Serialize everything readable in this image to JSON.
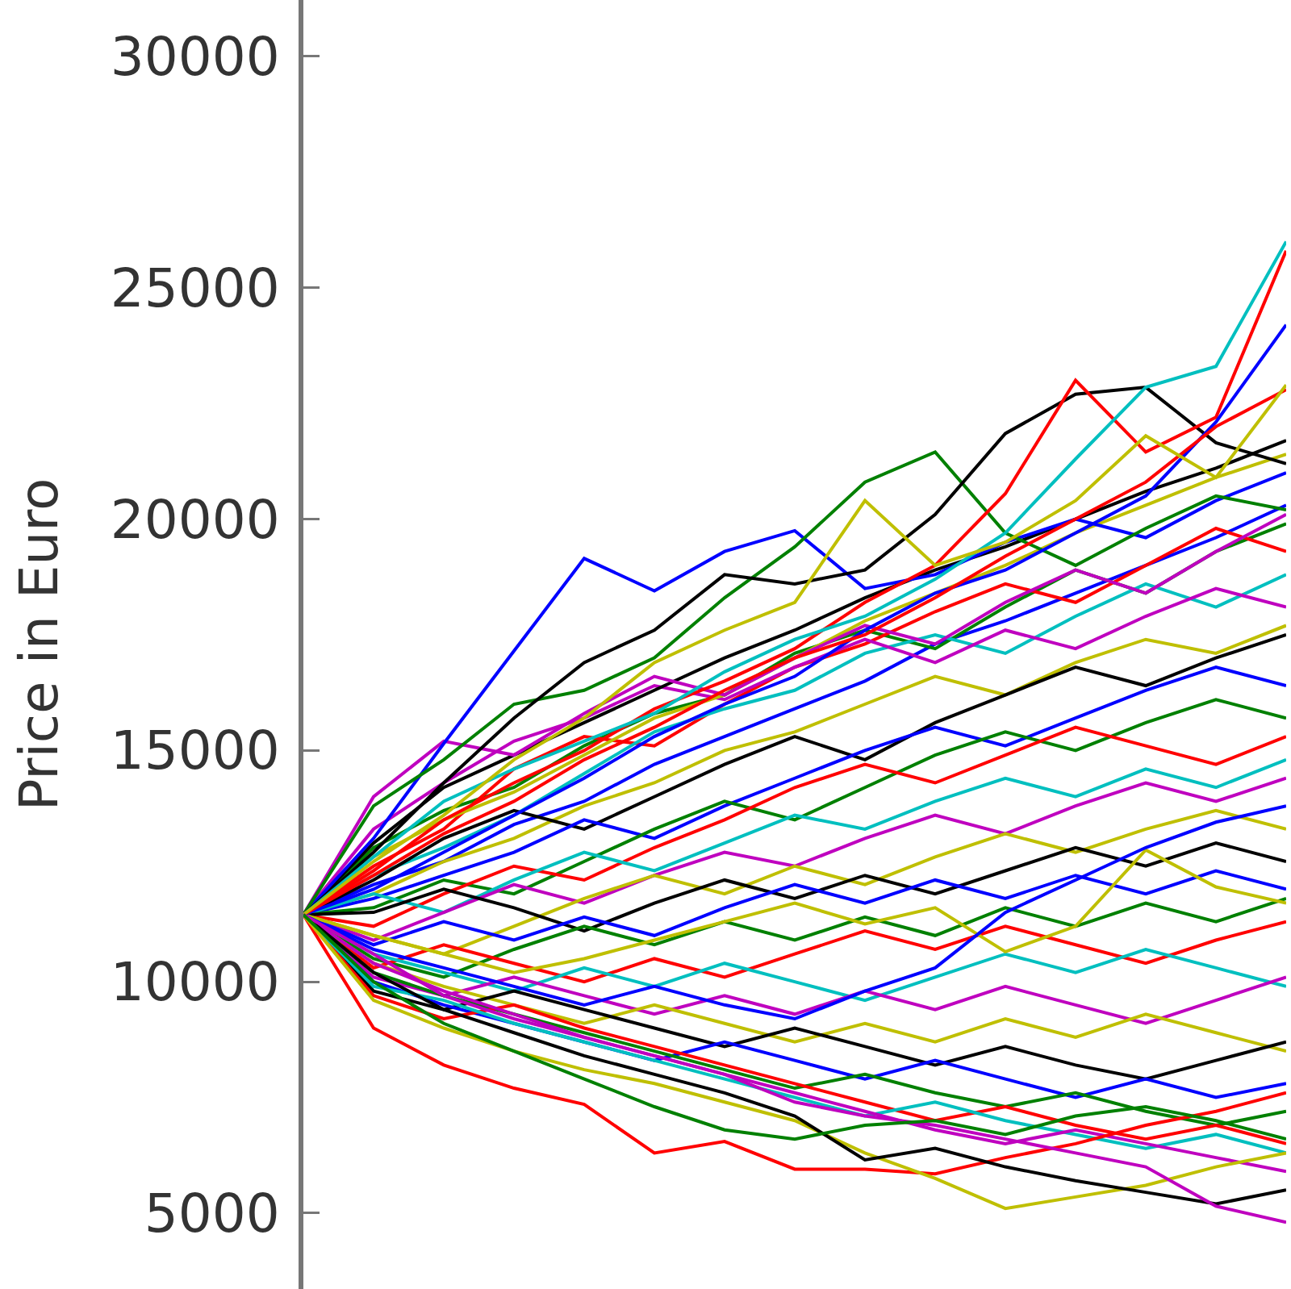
{
  "chart_data": {
    "type": "line",
    "ylabel": "Price in Euro",
    "categories": [
      null,
      null,
      null,
      null,
      null,
      null,
      null,
      null,
      null,
      null,
      null,
      null,
      null,
      null,
      null
    ],
    "ylim": [
      3360,
      31220
    ],
    "yticks": [
      5000,
      10000,
      15000,
      20000,
      25000,
      30000
    ],
    "tick_labels": "y",
    "grid": false,
    "series": [
      {
        "color": "#0000ff",
        "values": [
          11450,
          12100,
          12600,
          13400,
          13900,
          14700,
          15300,
          15900,
          16500,
          17300,
          17800,
          18400,
          19000,
          19600,
          20300
        ]
      },
      {
        "color": "#008000",
        "values": [
          11450,
          12900,
          13700,
          14200,
          15100,
          15800,
          16200,
          17100,
          17600,
          17200,
          18100,
          18900,
          18400,
          19300,
          19900
        ]
      },
      {
        "color": "#ff0000",
        "values": [
          11450,
          12500,
          13300,
          14600,
          15300,
          15100,
          16000,
          16800,
          17300,
          18000,
          18600,
          18200,
          19000,
          19800,
          19300
        ]
      },
      {
        "color": "#00bfbf",
        "values": [
          11450,
          12300,
          12900,
          13600,
          14500,
          15400,
          15900,
          16300,
          17100,
          17500,
          17100,
          17900,
          18600,
          18100,
          18800
        ]
      },
      {
        "color": "#bf00bf",
        "values": [
          11450,
          13300,
          14300,
          15200,
          15700,
          16400,
          16100,
          16800,
          17400,
          16900,
          17600,
          17200,
          17900,
          18500,
          18100
        ]
      },
      {
        "color": "#bfbf00",
        "values": [
          11450,
          11900,
          12600,
          13100,
          13800,
          14300,
          15000,
          15400,
          16000,
          16600,
          16200,
          16900,
          17400,
          17100,
          17700
        ]
      },
      {
        "color": "#000000",
        "values": [
          11450,
          12200,
          13100,
          13700,
          13300,
          14000,
          14700,
          15300,
          14800,
          15600,
          16200,
          16800,
          16400,
          17000,
          17500
        ]
      },
      {
        "color": "#0000ff",
        "values": [
          11450,
          11800,
          12300,
          12800,
          13500,
          13100,
          13800,
          14400,
          15000,
          15500,
          15100,
          15700,
          16300,
          16800,
          16400
        ]
      },
      {
        "color": "#008000",
        "values": [
          11450,
          11600,
          12200,
          11900,
          12600,
          13300,
          13900,
          13500,
          14200,
          14900,
          15400,
          15000,
          15600,
          16100,
          15700
        ]
      },
      {
        "color": "#ff0000",
        "values": [
          11450,
          11200,
          11900,
          12500,
          12200,
          12900,
          13500,
          14200,
          14700,
          14300,
          14900,
          15500,
          15100,
          14700,
          15300
        ]
      },
      {
        "color": "#00bfbf",
        "values": [
          11450,
          11900,
          11500,
          12200,
          12800,
          12400,
          13000,
          13600,
          13300,
          13900,
          14400,
          14000,
          14600,
          14200,
          14800
        ]
      },
      {
        "color": "#bf00bf",
        "values": [
          11450,
          10900,
          11500,
          12100,
          11700,
          12300,
          12800,
          12500,
          13100,
          13600,
          13200,
          13800,
          14300,
          13900,
          14400
        ]
      },
      {
        "color": "#bfbf00",
        "values": [
          11450,
          11000,
          10600,
          11200,
          11800,
          12300,
          11900,
          12500,
          12100,
          12700,
          13200,
          12800,
          13300,
          13700,
          13300
        ]
      },
      {
        "color": "#000000",
        "values": [
          11450,
          11500,
          12000,
          11600,
          11100,
          11700,
          12200,
          11800,
          12300,
          11900,
          12400,
          12900,
          12500,
          13000,
          12600
        ]
      },
      {
        "color": "#0000ff",
        "values": [
          11450,
          10800,
          11300,
          10900,
          11400,
          11000,
          11600,
          12100,
          11700,
          12200,
          11800,
          12300,
          11900,
          12400,
          12000
        ]
      },
      {
        "color": "#008000",
        "values": [
          11450,
          10500,
          10100,
          10700,
          11200,
          10800,
          11300,
          10900,
          11400,
          11000,
          11600,
          11200,
          11700,
          11300,
          11800
        ]
      },
      {
        "color": "#ff0000",
        "values": [
          11450,
          10300,
          10800,
          10400,
          10000,
          10500,
          10100,
          10600,
          11100,
          10700,
          11200,
          10800,
          10400,
          10900,
          11300
        ]
      },
      {
        "color": "#00bfbf",
        "values": [
          11450,
          10600,
          10200,
          9800,
          10300,
          9900,
          10400,
          10000,
          9600,
          10100,
          10600,
          10200,
          10700,
          10300,
          9900
        ]
      },
      {
        "color": "#bf00bf",
        "values": [
          11450,
          10100,
          9700,
          10100,
          9700,
          9300,
          9700,
          9300,
          9800,
          9400,
          9900,
          9500,
          9100,
          9600,
          10100
        ]
      },
      {
        "color": "#bfbf00",
        "values": [
          11450,
          10400,
          9900,
          9500,
          9100,
          9500,
          9100,
          8700,
          9100,
          8700,
          9200,
          8800,
          9300,
          8900,
          8500
        ]
      },
      {
        "color": "#000000",
        "values": [
          11450,
          9800,
          9400,
          9800,
          9400,
          9000,
          8600,
          9000,
          8600,
          8200,
          8600,
          8200,
          7900,
          8300,
          8700
        ]
      },
      {
        "color": "#0000ff",
        "values": [
          11450,
          10000,
          9500,
          9100,
          8700,
          8300,
          8700,
          8300,
          7900,
          8300,
          7900,
          7500,
          7900,
          7500,
          7800
        ]
      },
      {
        "color": "#008000",
        "values": [
          11450,
          10200,
          9700,
          9300,
          8900,
          8500,
          8100,
          7700,
          8000,
          7600,
          7300,
          7600,
          7200,
          6900,
          7200
        ]
      },
      {
        "color": "#ff0000",
        "values": [
          11450,
          9700,
          9200,
          9500,
          9000,
          8600,
          8200,
          7800,
          7400,
          7000,
          7300,
          6900,
          6600,
          6900,
          6500
        ]
      },
      {
        "color": "#00bfbf",
        "values": [
          11450,
          9900,
          9600,
          9100,
          8700,
          8300,
          7900,
          7500,
          7100,
          7400,
          7000,
          6700,
          6400,
          6700,
          6300
        ]
      },
      {
        "color": "#bf00bf",
        "values": [
          11450,
          10400,
          9800,
          9300,
          8800,
          8400,
          8000,
          7600,
          7200,
          6800,
          6500,
          6800,
          6500,
          6200,
          5900
        ]
      },
      {
        "color": "#bfbf00",
        "values": [
          11450,
          12700,
          13500,
          14100,
          14900,
          15700,
          16200,
          17000,
          17800,
          18400,
          19000,
          19700,
          20300,
          20900,
          21400
        ]
      },
      {
        "color": "#000000",
        "values": [
          11450,
          13000,
          14200,
          14900,
          15600,
          16300,
          17000,
          17600,
          18300,
          18900,
          19400,
          20000,
          20600,
          21100,
          21700
        ]
      },
      {
        "color": "#bfbf00",
        "values": [
          11450,
          11000,
          10600,
          10200,
          10500,
          10900,
          11300,
          11700,
          11250,
          11600,
          10650,
          11200,
          12850,
          12050,
          11700
        ]
      },
      {
        "color": "#0000ff",
        "values": [
          11450,
          10700,
          10300,
          9900,
          9500,
          9900,
          9500,
          9200,
          9800,
          10300,
          11500,
          12200,
          12900,
          13450,
          13800
        ]
      },
      {
        "color": "#bf00bf",
        "values": [
          11450,
          14000,
          15200,
          14900,
          15800,
          16600,
          16200,
          17000,
          17700,
          17300,
          18200,
          18900,
          18400,
          19300,
          20100
        ]
      },
      {
        "color": "#0000ff",
        "values": [
          11450,
          13100,
          15150,
          17150,
          19150,
          18450,
          19300,
          19750,
          18500,
          18800,
          19500,
          20000,
          19600,
          20400,
          21000
        ]
      },
      {
        "color": "#008000",
        "values": [
          11450,
          13800,
          14800,
          16000,
          16300,
          17000,
          18300,
          19400,
          20800,
          21450,
          19700,
          19000,
          19800,
          20500,
          20200
        ]
      },
      {
        "color": "#000000",
        "values": [
          11450,
          12800,
          14300,
          15700,
          16900,
          17600,
          18800,
          18600,
          18900,
          20100,
          21850,
          22700,
          22850,
          21650,
          21200
        ]
      },
      {
        "color": "#ff0000",
        "values": [
          11450,
          12400,
          13500,
          14300,
          15000,
          15900,
          16500,
          17200,
          18200,
          19000,
          20550,
          23000,
          21450,
          22200,
          25800
        ]
      },
      {
        "color": "#00bfbf",
        "values": [
          11450,
          12700,
          13900,
          14600,
          15200,
          15800,
          16700,
          17400,
          17900,
          18700,
          19700,
          21300,
          22850,
          23300,
          26000
        ]
      },
      {
        "color": "#0000ff",
        "values": [
          11450,
          12000,
          12800,
          13600,
          14400,
          15300,
          16000,
          16600,
          17600,
          18400,
          18900,
          19700,
          20500,
          22100,
          24200
        ]
      },
      {
        "color": "#ff0000",
        "values": [
          11450,
          12300,
          13200,
          13900,
          14800,
          15500,
          16300,
          17000,
          17500,
          18300,
          19200,
          20000,
          20800,
          22000,
          22800
        ]
      },
      {
        "color": "#bfbf00",
        "values": [
          11450,
          12600,
          13600,
          14800,
          15700,
          16900,
          17600,
          18200,
          20400,
          19000,
          19500,
          20400,
          21800,
          20900,
          22900
        ]
      },
      {
        "color": "#ff0000",
        "values": [
          11450,
          9000,
          8200,
          7700,
          7350,
          6300,
          6550,
          5950,
          5950,
          5850,
          6200,
          6500,
          6900,
          7200,
          7600
        ]
      },
      {
        "color": "#bfbf00",
        "values": [
          11450,
          9600,
          9000,
          8500,
          8100,
          7800,
          7400,
          7000,
          6300,
          5750,
          5100,
          5350,
          5600,
          6000,
          6300
        ]
      },
      {
        "color": "#000000",
        "values": [
          11450,
          10200,
          9400,
          8900,
          8400,
          8000,
          7600,
          7100,
          6150,
          6400,
          6000,
          5700,
          5450,
          5200,
          5500
        ]
      },
      {
        "color": "#bf00bf",
        "values": [
          11450,
          10600,
          9700,
          9200,
          8800,
          8400,
          8000,
          7400,
          7100,
          6900,
          6600,
          6300,
          6000,
          5150,
          4800
        ]
      },
      {
        "color": "#008000",
        "values": [
          11450,
          10000,
          9100,
          8500,
          7900,
          7300,
          6800,
          6600,
          6900,
          7000,
          6700,
          7100,
          7300,
          7000,
          6600
        ]
      }
    ]
  }
}
